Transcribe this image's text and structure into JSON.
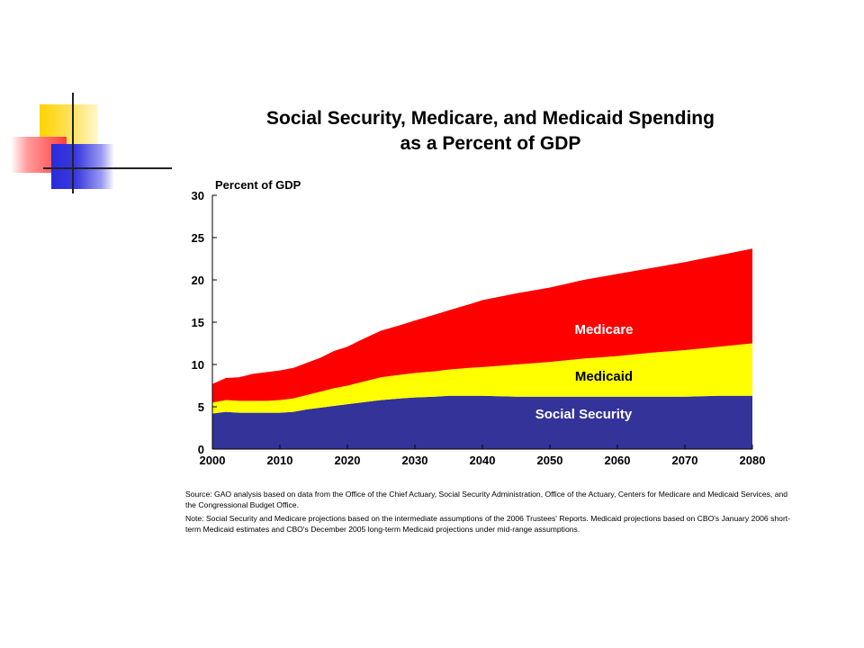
{
  "chart_data": {
    "type": "area",
    "stacked": true,
    "title": "Social Security, Medicare, and Medicaid Spending",
    "subtitle": "as a Percent of GDP",
    "ylabel": "Percent of GDP",
    "xlim": [
      2000,
      2080
    ],
    "ylim": [
      0,
      30
    ],
    "x_ticks": [
      2000,
      2010,
      2020,
      2030,
      2040,
      2050,
      2060,
      2070,
      2080
    ],
    "y_ticks": [
      0,
      5,
      10,
      15,
      20,
      25,
      30
    ],
    "grid": false,
    "x": [
      2000,
      2002,
      2004,
      2006,
      2008,
      2010,
      2012,
      2014,
      2016,
      2018,
      2020,
      2022,
      2025,
      2028,
      2030,
      2033,
      2035,
      2038,
      2040,
      2045,
      2050,
      2055,
      2060,
      2065,
      2070,
      2075,
      2080
    ],
    "series": [
      {
        "name": "Social Security",
        "color": "#333399",
        "values": [
          4.2,
          4.4,
          4.3,
          4.3,
          4.3,
          4.3,
          4.4,
          4.7,
          4.9,
          5.1,
          5.3,
          5.5,
          5.8,
          6.0,
          6.1,
          6.2,
          6.3,
          6.3,
          6.3,
          6.2,
          6.2,
          6.2,
          6.2,
          6.2,
          6.2,
          6.3,
          6.3
        ]
      },
      {
        "name": "Medicaid",
        "color": "#ffff00",
        "values": [
          1.3,
          1.4,
          1.4,
          1.4,
          1.4,
          1.5,
          1.6,
          1.7,
          1.9,
          2.1,
          2.2,
          2.4,
          2.7,
          2.8,
          2.9,
          3.0,
          3.1,
          3.3,
          3.4,
          3.8,
          4.1,
          4.5,
          4.8,
          5.2,
          5.5,
          5.8,
          6.2
        ]
      },
      {
        "name": "Medicare",
        "color": "#ff0000",
        "values": [
          2.2,
          2.6,
          2.8,
          3.2,
          3.4,
          3.5,
          3.6,
          3.8,
          4.0,
          4.4,
          4.6,
          5.0,
          5.5,
          5.9,
          6.2,
          6.7,
          7.0,
          7.5,
          7.9,
          8.4,
          8.8,
          9.3,
          9.7,
          10.0,
          10.4,
          10.8,
          11.2
        ]
      }
    ],
    "labels": [
      "Medicare",
      "Medicaid",
      "Social Security"
    ],
    "source": "Source:  GAO analysis based on data from the Office of the Chief Actuary, Social Security Administration, Office of the Actuary, Centers for Medicare and Medicaid Services, and the Congressional Budget Office.",
    "note": "Note:  Social Security and Medicare projections based on the intermediate assumptions of the 2006 Trustees' Reports.  Medicaid projections based on CBO's January 2006 short-term Medicaid estimates and CBO's December 2005 long-term Medicaid projections under mid-range assumptions."
  }
}
